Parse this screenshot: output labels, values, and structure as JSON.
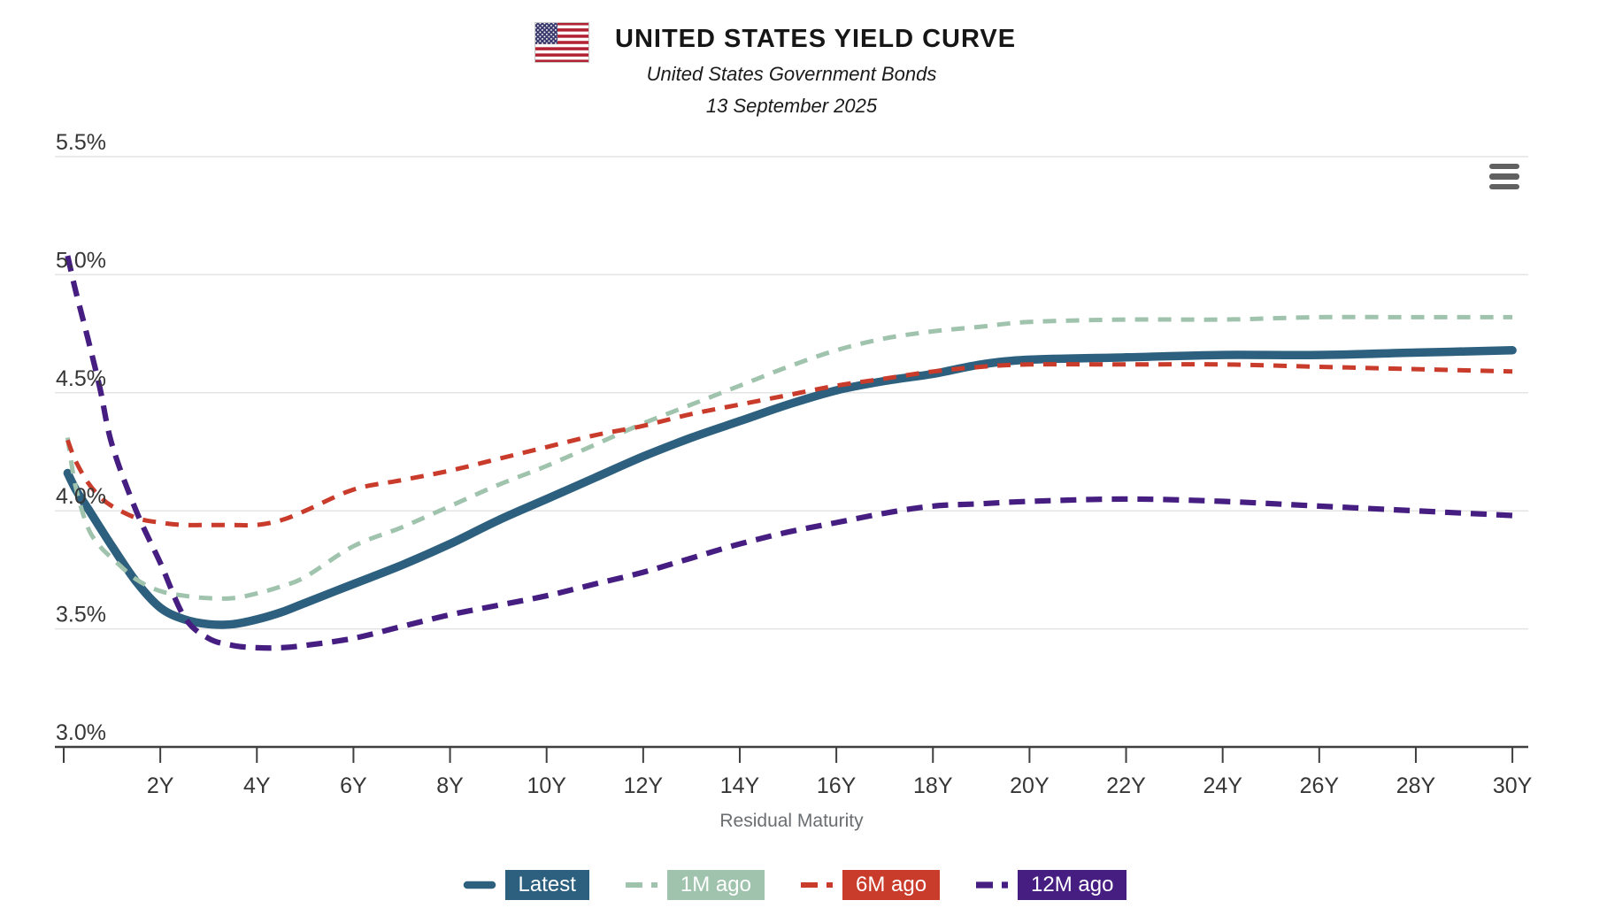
{
  "header": {
    "flag_icon": "us-flag-icon",
    "title": "UNITED STATES YIELD CURVE",
    "subtitle": "United States Government Bonds",
    "date": "13 September 2025"
  },
  "toolbar": {
    "menu_icon": "hamburger-menu-icon"
  },
  "chart_data": {
    "type": "line",
    "title": "UNITED STATES YIELD CURVE",
    "subtitle": "United States Government Bonds",
    "date_label": "13 September 2025",
    "xlabel": "Residual Maturity",
    "ylabel": "",
    "grid": true,
    "legend_position": "bottom",
    "xlim": [
      0,
      30.4
    ],
    "ylim": [
      3.0,
      5.5
    ],
    "x_ticks": [
      "2Y",
      "4Y",
      "6Y",
      "8Y",
      "10Y",
      "12Y",
      "14Y",
      "16Y",
      "18Y",
      "20Y",
      "22Y",
      "24Y",
      "26Y",
      "28Y",
      "30Y"
    ],
    "x_tick_years": [
      2,
      4,
      6,
      8,
      10,
      12,
      14,
      16,
      18,
      20,
      22,
      24,
      26,
      28,
      30
    ],
    "y_ticks": [
      {
        "value": 3.0,
        "label": "3.0%"
      },
      {
        "value": 3.5,
        "label": "3.5%"
      },
      {
        "value": 4.0,
        "label": "4.0%"
      },
      {
        "value": 4.5,
        "label": "4.5%"
      },
      {
        "value": 5.0,
        "label": "5.0%"
      },
      {
        "value": 5.5,
        "label": "5.5%"
      }
    ],
    "x": [
      0.08,
      0.25,
      0.5,
      0.75,
      1,
      1.5,
      2,
      2.5,
      3,
      3.5,
      4,
      4.5,
      5,
      6,
      7,
      8,
      9,
      10,
      11,
      12,
      13,
      14,
      15,
      16,
      17,
      18,
      19,
      20,
      22,
      24,
      26,
      28,
      30
    ],
    "series": [
      {
        "name": "Latest",
        "color": "#2d607e",
        "dash": "solid",
        "width": 9.5,
        "values": [
          4.16,
          4.09,
          4.01,
          3.93,
          3.85,
          3.7,
          3.59,
          3.54,
          3.52,
          3.52,
          3.54,
          3.57,
          3.61,
          3.69,
          3.77,
          3.86,
          3.96,
          4.05,
          4.14,
          4.23,
          4.31,
          4.38,
          4.45,
          4.51,
          4.55,
          4.58,
          4.62,
          4.64,
          4.65,
          4.66,
          4.66,
          4.67,
          4.68
        ]
      },
      {
        "name": "1M ago",
        "color": "#9fc3ad",
        "dash": "15 11",
        "width": 5,
        "values": [
          4.31,
          4.1,
          3.93,
          3.85,
          3.8,
          3.71,
          3.66,
          3.64,
          3.63,
          3.63,
          3.65,
          3.68,
          3.72,
          3.85,
          3.93,
          4.02,
          4.11,
          4.19,
          4.28,
          4.37,
          4.45,
          4.53,
          4.61,
          4.68,
          4.73,
          4.76,
          4.78,
          4.8,
          4.81,
          4.81,
          4.82,
          4.82,
          4.82
        ]
      },
      {
        "name": "6M ago",
        "color": "#c93b2b",
        "dash": "15 11",
        "width": 5,
        "values": [
          4.3,
          4.21,
          4.12,
          4.06,
          4.02,
          3.97,
          3.95,
          3.94,
          3.94,
          3.94,
          3.94,
          3.96,
          4.0,
          4.09,
          4.13,
          4.17,
          4.22,
          4.27,
          4.32,
          4.36,
          4.41,
          4.45,
          4.49,
          4.53,
          4.56,
          4.59,
          4.61,
          4.62,
          4.62,
          4.62,
          4.61,
          4.6,
          4.59
        ]
      },
      {
        "name": "12M ago",
        "color": "#461e82",
        "dash": "18 11",
        "width": 6.2,
        "values": [
          5.08,
          4.93,
          4.73,
          4.52,
          4.28,
          4.0,
          3.78,
          3.55,
          3.46,
          3.43,
          3.42,
          3.42,
          3.43,
          3.46,
          3.51,
          3.56,
          3.6,
          3.64,
          3.69,
          3.74,
          3.8,
          3.86,
          3.91,
          3.95,
          3.99,
          4.02,
          4.03,
          4.04,
          4.05,
          4.04,
          4.02,
          4.0,
          3.98
        ]
      }
    ]
  }
}
